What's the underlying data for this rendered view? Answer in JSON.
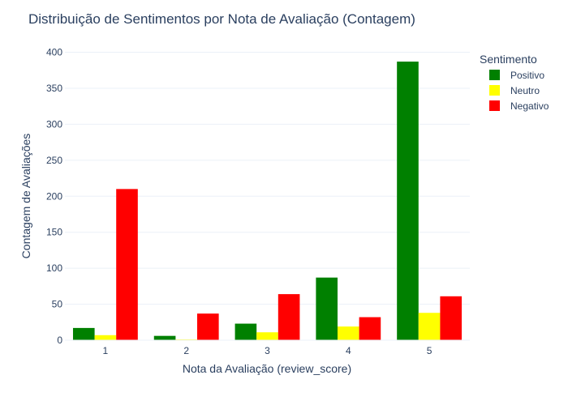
{
  "chart_data": {
    "type": "bar",
    "title": "Distribuição de Sentimentos por Nota de Avaliação (Contagem)",
    "xlabel": "Nota da Avaliação (review_score)",
    "ylabel": "Contagem de Avaliações",
    "categories": [
      "1",
      "2",
      "3",
      "4",
      "5"
    ],
    "ylim": [
      0,
      410
    ],
    "yticks": [
      0,
      50,
      100,
      150,
      200,
      250,
      300,
      350,
      400
    ],
    "grid": true,
    "legend": {
      "title": "Sentimento",
      "placement": "top-right, outside plot"
    },
    "series": [
      {
        "name": "Positivo",
        "color": "#008000",
        "values": [
          17,
          6,
          23,
          87,
          387
        ]
      },
      {
        "name": "Neutro",
        "color": "#ffff00",
        "values": [
          7,
          1,
          11,
          19,
          38
        ]
      },
      {
        "name": "Negativo",
        "color": "#ff0000",
        "values": [
          210,
          37,
          64,
          32,
          61
        ]
      }
    ]
  }
}
